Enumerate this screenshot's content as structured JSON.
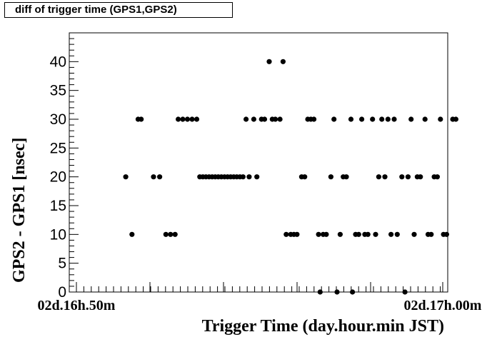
{
  "title": "diff of trigger time (GPS1,GPS2)",
  "chart_data": {
    "type": "scatter",
    "xlabel": "Trigger Time (day.hour.min JST)",
    "ylabel": "GPS2 - GPS1 [nsec]",
    "ylim": [
      0,
      45
    ],
    "xlim_labels": [
      "02d.16h.50m",
      "02d.17h.00m"
    ],
    "yticks": [
      "0",
      "5",
      "10",
      "15",
      "20",
      "25",
      "30",
      "35",
      "40"
    ],
    "grid": false,
    "colors": {
      "marker": "#000000",
      "axis": "#000000"
    },
    "points": [
      {
        "t": 1.6,
        "y": 20
      },
      {
        "t": 1.8,
        "y": 10
      },
      {
        "t": 2.0,
        "y": 30
      },
      {
        "t": 2.1,
        "y": 30
      },
      {
        "t": 2.5,
        "y": 20
      },
      {
        "t": 2.7,
        "y": 20
      },
      {
        "t": 2.9,
        "y": 10
      },
      {
        "t": 3.05,
        "y": 10
      },
      {
        "t": 3.2,
        "y": 10
      },
      {
        "t": 3.3,
        "y": 30
      },
      {
        "t": 3.45,
        "y": 30
      },
      {
        "t": 3.6,
        "y": 30
      },
      {
        "t": 3.75,
        "y": 30
      },
      {
        "t": 3.9,
        "y": 30
      },
      {
        "t": 4.0,
        "y": 20
      },
      {
        "t": 4.1,
        "y": 20
      },
      {
        "t": 4.2,
        "y": 20
      },
      {
        "t": 4.3,
        "y": 20
      },
      {
        "t": 4.4,
        "y": 20
      },
      {
        "t": 4.5,
        "y": 20
      },
      {
        "t": 4.6,
        "y": 20
      },
      {
        "t": 4.7,
        "y": 20
      },
      {
        "t": 4.8,
        "y": 20
      },
      {
        "t": 4.9,
        "y": 20
      },
      {
        "t": 5.0,
        "y": 20
      },
      {
        "t": 5.1,
        "y": 20
      },
      {
        "t": 5.2,
        "y": 20
      },
      {
        "t": 5.3,
        "y": 20
      },
      {
        "t": 5.4,
        "y": 20
      },
      {
        "t": 5.5,
        "y": 30
      },
      {
        "t": 5.6,
        "y": 20
      },
      {
        "t": 5.75,
        "y": 30
      },
      {
        "t": 5.85,
        "y": 20
      },
      {
        "t": 6.0,
        "y": 30
      },
      {
        "t": 6.1,
        "y": 30
      },
      {
        "t": 6.25,
        "y": 40
      },
      {
        "t": 6.35,
        "y": 30
      },
      {
        "t": 6.45,
        "y": 30
      },
      {
        "t": 6.6,
        "y": 30
      },
      {
        "t": 6.7,
        "y": 40
      },
      {
        "t": 6.8,
        "y": 10
      },
      {
        "t": 6.95,
        "y": 10
      },
      {
        "t": 7.05,
        "y": 10
      },
      {
        "t": 7.15,
        "y": 10
      },
      {
        "t": 7.3,
        "y": 20
      },
      {
        "t": 7.4,
        "y": 20
      },
      {
        "t": 7.5,
        "y": 30
      },
      {
        "t": 7.6,
        "y": 30
      },
      {
        "t": 7.7,
        "y": 30
      },
      {
        "t": 7.85,
        "y": 10
      },
      {
        "t": 7.9,
        "y": 0
      },
      {
        "t": 8.0,
        "y": 10
      },
      {
        "t": 8.1,
        "y": 10
      },
      {
        "t": 8.25,
        "y": 20
      },
      {
        "t": 8.35,
        "y": 30
      },
      {
        "t": 8.45,
        "y": 0
      },
      {
        "t": 8.55,
        "y": 10
      },
      {
        "t": 8.65,
        "y": 20
      },
      {
        "t": 8.75,
        "y": 20
      },
      {
        "t": 8.9,
        "y": 30
      },
      {
        "t": 8.95,
        "y": 0
      },
      {
        "t": 9.05,
        "y": 10
      },
      {
        "t": 9.15,
        "y": 10
      },
      {
        "t": 9.25,
        "y": 30
      },
      {
        "t": 9.35,
        "y": 10
      },
      {
        "t": 9.45,
        "y": 10
      },
      {
        "t": 9.6,
        "y": 30
      },
      {
        "t": 9.7,
        "y": 10
      },
      {
        "t": 9.8,
        "y": 20
      },
      {
        "t": 9.9,
        "y": 30
      },
      {
        "t": 10.0,
        "y": 20
      },
      {
        "t": 10.1,
        "y": 30
      },
      {
        "t": 10.2,
        "y": 10
      },
      {
        "t": 10.3,
        "y": 30
      },
      {
        "t": 10.4,
        "y": 10
      },
      {
        "t": 10.55,
        "y": 20
      },
      {
        "t": 10.65,
        "y": 0
      },
      {
        "t": 10.75,
        "y": 20
      },
      {
        "t": 10.85,
        "y": 30
      },
      {
        "t": 10.95,
        "y": 10
      },
      {
        "t": 11.05,
        "y": 20
      },
      {
        "t": 11.15,
        "y": 20
      },
      {
        "t": 11.3,
        "y": 30
      },
      {
        "t": 11.4,
        "y": 10
      },
      {
        "t": 11.5,
        "y": 10
      },
      {
        "t": 11.6,
        "y": 20
      },
      {
        "t": 11.7,
        "y": 20
      },
      {
        "t": 11.8,
        "y": 30
      },
      {
        "t": 11.9,
        "y": 10
      },
      {
        "t": 12.0,
        "y": 10
      },
      {
        "t": 12.2,
        "y": 30
      },
      {
        "t": 12.3,
        "y": 30
      }
    ]
  }
}
